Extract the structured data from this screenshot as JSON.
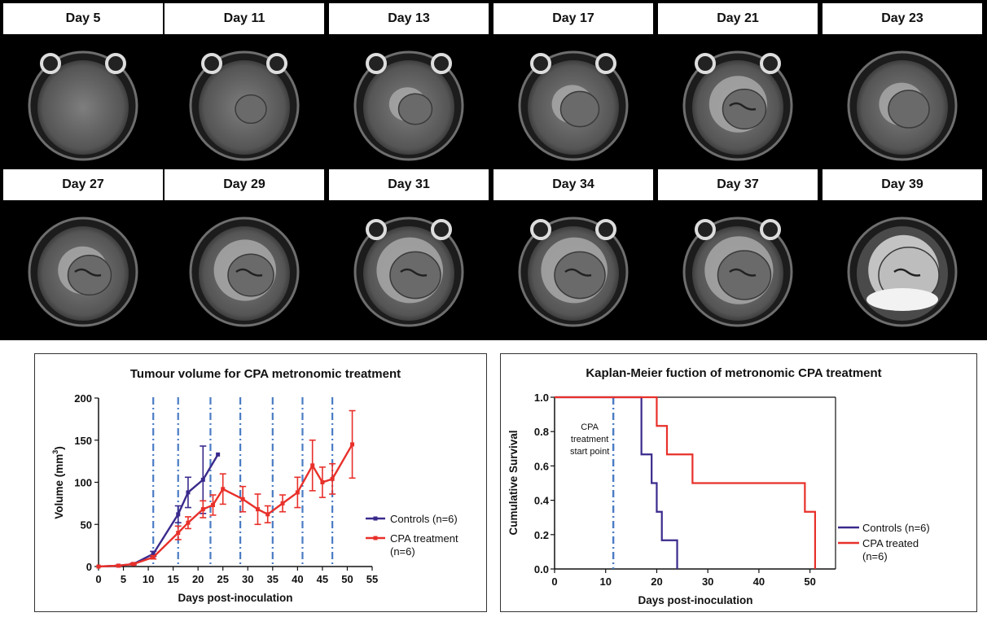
{
  "mri_panels": [
    {
      "label": "Day 5",
      "tumour": 0.0,
      "edema": 0.0,
      "eyes": true,
      "bright": false
    },
    {
      "label": "Day 11",
      "tumour": 0.3,
      "edema": 0.0,
      "eyes": true,
      "bright": false
    },
    {
      "label": "Day 13",
      "tumour": 0.35,
      "edema": 0.1,
      "eyes": true,
      "bright": false
    },
    {
      "label": "Day 17",
      "tumour": 0.45,
      "edema": 0.2,
      "eyes": true,
      "bright": false
    },
    {
      "label": "Day 21",
      "tumour": 0.55,
      "edema": 0.6,
      "eyes": true,
      "bright": false
    },
    {
      "label": "Day 23",
      "tumour": 0.5,
      "edema": 0.3,
      "eyes": false,
      "bright": false
    },
    {
      "label": "Day 27",
      "tumour": 0.55,
      "edema": 0.4,
      "eyes": false,
      "bright": false
    },
    {
      "label": "Day 29",
      "tumour": 0.6,
      "edema": 0.7,
      "eyes": false,
      "bright": false
    },
    {
      "label": "Day 31",
      "tumour": 0.7,
      "edema": 0.8,
      "eyes": true,
      "bright": false
    },
    {
      "label": "Day 34",
      "tumour": 0.7,
      "edema": 0.8,
      "eyes": true,
      "bright": false
    },
    {
      "label": "Day 37",
      "tumour": 0.75,
      "edema": 0.85,
      "eyes": true,
      "bright": false
    },
    {
      "label": "Day 39",
      "tumour": 0.9,
      "edema": 0.9,
      "eyes": false,
      "bright": true
    }
  ],
  "chart_data": [
    {
      "type": "line",
      "title": "Tumour volume for CPA metronomic treatment",
      "xlabel": "Days post-inoculation",
      "ylabel": "Volume (mm",
      "ylabel_sup": "3",
      "ylabel_end": ")",
      "xlim": [
        0,
        55
      ],
      "ylim": [
        0,
        200
      ],
      "xticks": [
        "0",
        "5",
        "10",
        "15",
        "20",
        "25",
        "30",
        "35",
        "40",
        "45",
        "50",
        "55"
      ],
      "yticks": [
        "0",
        "50",
        "100",
        "150",
        "200"
      ],
      "treatment_lines_x": [
        11,
        16,
        22.5,
        28.5,
        35,
        41,
        47
      ],
      "series": [
        {
          "name": "Controls (n=6)",
          "color": "#3a2a8c",
          "x": [
            0,
            4,
            7,
            11,
            16,
            18,
            21,
            24
          ],
          "y": [
            0,
            1,
            3,
            15,
            62,
            88,
            103,
            133
          ],
          "err": [
            0,
            0.5,
            1,
            3,
            10,
            18,
            40,
            0
          ]
        },
        {
          "name": "CPA treatment",
          "name2": "(n=6)",
          "color": "#e8302a",
          "x": [
            0,
            4,
            7,
            11,
            16,
            18,
            21,
            23,
            25,
            29,
            32,
            34,
            37,
            40,
            43,
            45,
            47,
            51
          ],
          "y": [
            0,
            1,
            3,
            11,
            40,
            52,
            68,
            73,
            92,
            80,
            68,
            62,
            75,
            88,
            120,
            100,
            104,
            145
          ],
          "err": [
            0,
            0.5,
            1,
            2,
            8,
            7,
            10,
            12,
            18,
            15,
            18,
            10,
            10,
            18,
            30,
            18,
            18,
            40
          ]
        }
      ]
    },
    {
      "type": "line",
      "title": "Kaplan-Meier fuction of metronomic CPA treatment",
      "xlabel": "Days post-inoculation",
      "ylabel": "Cumulative Survival",
      "xlim": [
        0,
        55
      ],
      "ylim": [
        0,
        1
      ],
      "xticks": [
        "0",
        "10",
        "20",
        "30",
        "40",
        "50"
      ],
      "yticks": [
        "0.0",
        "0.2",
        "0.4",
        "0.6",
        "0.8",
        "1.0"
      ],
      "treatment_start_x": 11.5,
      "annotation": [
        "CPA",
        "treatment",
        "start point"
      ],
      "series": [
        {
          "name": "Controls (n=6)",
          "color": "#3a2a8c",
          "steps_x": [
            0,
            17,
            19,
            20,
            21,
            22,
            24
          ],
          "steps_y": [
            1.0,
            0.667,
            0.5,
            0.333,
            0.167,
            0.167,
            0.0
          ]
        },
        {
          "name": "CPA treated",
          "name2": "(n=6)",
          "color": "#e8302a",
          "steps_x": [
            0,
            20,
            22,
            27,
            49,
            51
          ],
          "steps_y": [
            1.0,
            0.833,
            0.667,
            0.5,
            0.333,
            0.0
          ]
        }
      ]
    }
  ]
}
